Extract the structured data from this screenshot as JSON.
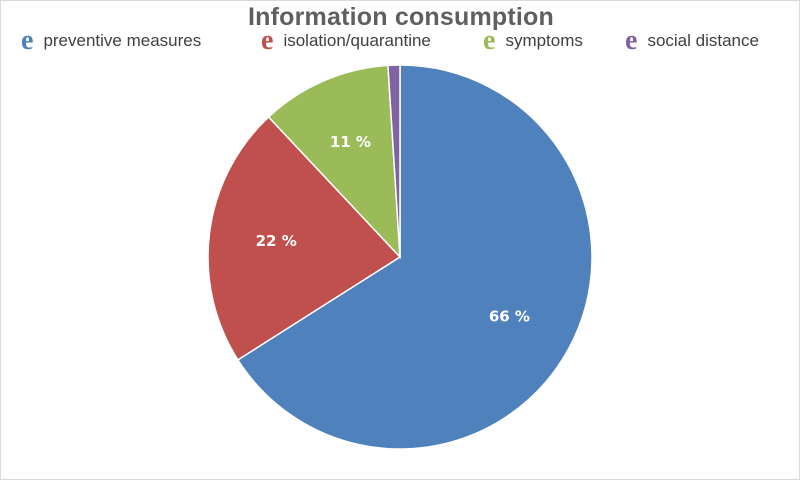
{
  "chart_data": {
    "type": "pie",
    "title": "Information consumption",
    "categories": [
      "preventive measures",
      "isolation/quarantine",
      "symptoms",
      "social distance"
    ],
    "values": [
      66,
      22,
      11,
      1
    ],
    "data_labels": [
      "66 %",
      "22 %",
      "11 %",
      ""
    ],
    "colors": [
      "#4f81bd",
      "#c0504d",
      "#9bbb59",
      "#8064a2"
    ],
    "legend_marker": "e",
    "legend_position": "top"
  }
}
